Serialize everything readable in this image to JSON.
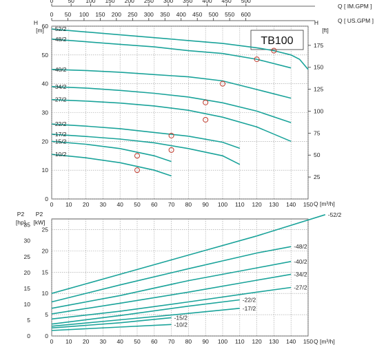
{
  "model_label": "TB100",
  "top_axes": {
    "im_gpm": {
      "label": "Q [ IM.GPM ]",
      "ticks": [
        "0",
        "50",
        "100",
        "150",
        "200",
        "250",
        "300",
        "350",
        "400",
        "450",
        "500"
      ]
    },
    "us_gpm": {
      "label": "Q [ US.GPM ]",
      "ticks": [
        "0",
        "50",
        "100",
        "150",
        "200",
        "250",
        "300",
        "350",
        "400",
        "450",
        "500",
        "550",
        "600"
      ]
    }
  },
  "chart_data": [
    {
      "type": "line",
      "xlabel": "Q [m³/h]",
      "ylabel": "H [m]",
      "y2label": "H [ft]",
      "x_ticks": [
        0,
        10,
        20,
        30,
        40,
        50,
        60,
        70,
        80,
        90,
        100,
        110,
        120,
        130,
        140,
        150
      ],
      "y_ticks": [
        0,
        10,
        20,
        30,
        40,
        50,
        60
      ],
      "y2_ticks": [
        25,
        50,
        75,
        100,
        125,
        150,
        175
      ],
      "xlim": [
        0,
        150
      ],
      "ylim": [
        0,
        60
      ],
      "grid": true,
      "series": [
        {
          "name": "52/2",
          "x": [
            0,
            20,
            40,
            60,
            80,
            100,
            120,
            130,
            140,
            145,
            150
          ],
          "y": [
            59,
            58,
            57,
            56,
            55,
            54,
            52.5,
            51.5,
            50,
            48.5,
            45
          ],
          "bep": [
            130,
            51.5
          ]
        },
        {
          "name": "48/2",
          "x": [
            0,
            20,
            40,
            60,
            80,
            100,
            120,
            140
          ],
          "y": [
            55.5,
            54.6,
            53.7,
            52.8,
            51.5,
            50.5,
            48.5,
            45.5
          ],
          "bep": [
            120,
            48.5
          ]
        },
        {
          "name": "40/2",
          "x": [
            0,
            20,
            40,
            60,
            80,
            100,
            120,
            140
          ],
          "y": [
            45,
            44.6,
            44,
            43.2,
            42.4,
            41,
            38,
            35
          ],
          "bep": [
            100,
            40
          ]
        },
        {
          "name": "34/2",
          "x": [
            0,
            20,
            40,
            60,
            80,
            100,
            120,
            140
          ],
          "y": [
            39,
            38.5,
            37.7,
            36.7,
            35.4,
            33.4,
            30.5,
            26.5
          ],
          "bep": [
            90,
            33.5
          ]
        },
        {
          "name": "27/2",
          "x": [
            0,
            20,
            40,
            60,
            80,
            100,
            120,
            140
          ],
          "y": [
            34.5,
            34,
            33.3,
            32.3,
            30.8,
            28.4,
            25,
            20
          ],
          "bep": [
            90,
            27.5
          ]
        },
        {
          "name": "22/2",
          "x": [
            0,
            20,
            40,
            60,
            80,
            100,
            110
          ],
          "y": [
            26,
            25.3,
            24.4,
            23.1,
            21.8,
            19.7,
            17.6
          ],
          "bep": [
            70,
            22
          ]
        },
        {
          "name": "17/2",
          "x": [
            0,
            20,
            40,
            60,
            80,
            100,
            110
          ],
          "y": [
            22.5,
            21.7,
            20.8,
            19.5,
            17.5,
            15,
            12
          ],
          "bep": [
            70,
            17
          ]
        },
        {
          "name": "15/2",
          "x": [
            0,
            20,
            40,
            60,
            70
          ],
          "y": [
            20,
            19,
            17.5,
            15,
            13
          ],
          "bep": [
            50,
            15
          ]
        },
        {
          "name": "10/2",
          "x": [
            0,
            20,
            40,
            60,
            70
          ],
          "y": [
            15.5,
            14.3,
            12.6,
            10,
            8
          ],
          "bep": [
            50,
            10
          ]
        }
      ]
    },
    {
      "type": "line",
      "xlabel": "Q [m³/h]",
      "ylabel": "P2 [kW]",
      "y2label": "P2 [hp]",
      "x_ticks": [
        0,
        10,
        20,
        30,
        40,
        50,
        60,
        70,
        80,
        90,
        100,
        110,
        120,
        130,
        140,
        150
      ],
      "y_ticks": [
        0,
        5,
        10,
        15,
        20,
        25
      ],
      "y2_ticks": [
        0,
        5,
        10,
        15,
        20,
        25,
        30,
        35
      ],
      "xlim": [
        0,
        150
      ],
      "ylim": [
        0,
        27.5
      ],
      "grid": true,
      "series": [
        {
          "name": "52/2",
          "x": [
            0,
            40,
            80,
            120,
            160
          ],
          "y": [
            10,
            14.5,
            19,
            23.5,
            28.5
          ]
        },
        {
          "name": "48/2",
          "x": [
            0,
            40,
            80,
            120,
            140
          ],
          "y": [
            8,
            12,
            15.8,
            19.5,
            21
          ]
        },
        {
          "name": "40/2",
          "x": [
            0,
            40,
            80,
            120,
            140
          ],
          "y": [
            6.5,
            9.5,
            13,
            16,
            17.5
          ]
        },
        {
          "name": "34/2",
          "x": [
            0,
            40,
            80,
            120,
            140
          ],
          "y": [
            5.2,
            7.7,
            10.3,
            13.1,
            14.5
          ]
        },
        {
          "name": "27/2",
          "x": [
            0,
            40,
            80,
            120,
            140
          ],
          "y": [
            4,
            5.8,
            8,
            10.3,
            11.4
          ]
        },
        {
          "name": "22/2",
          "x": [
            0,
            40,
            80,
            110
          ],
          "y": [
            2.8,
            4.8,
            7,
            8.5
          ]
        },
        {
          "name": "17/2",
          "x": [
            0,
            40,
            80,
            110
          ],
          "y": [
            2.3,
            3.8,
            5.3,
            6.5
          ]
        },
        {
          "name": "15/2",
          "x": [
            0,
            40,
            70
          ],
          "y": [
            1.9,
            3.1,
            4.3
          ]
        },
        {
          "name": "10/2",
          "x": [
            0,
            40,
            70
          ],
          "y": [
            1.3,
            2.1,
            2.7
          ]
        }
      ]
    }
  ]
}
